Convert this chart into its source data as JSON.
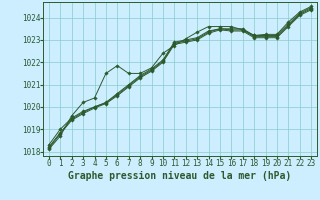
{
  "title": "Graphe pression niveau de la mer (hPa)",
  "background_color": "#cceeff",
  "grid_color": "#88cccc",
  "line_color": "#2d5a2d",
  "xlim": [
    -0.5,
    23.5
  ],
  "ylim": [
    1017.8,
    1024.7
  ],
  "xticks": [
    0,
    1,
    2,
    3,
    4,
    5,
    6,
    7,
    8,
    9,
    10,
    11,
    12,
    13,
    14,
    15,
    16,
    17,
    18,
    19,
    20,
    21,
    22,
    23
  ],
  "yticks": [
    1018,
    1019,
    1020,
    1021,
    1022,
    1023,
    1024
  ],
  "series": [
    [
      1018.3,
      1019.0,
      1019.5,
      1019.8,
      1020.0,
      1020.2,
      1020.6,
      1021.0,
      1021.4,
      1021.7,
      1022.1,
      1022.9,
      1023.0,
      1023.1,
      1023.4,
      1023.5,
      1023.5,
      1023.5,
      1023.2,
      1023.2,
      1023.2,
      1023.7,
      1024.2,
      1024.45
    ],
    [
      1018.15,
      1018.8,
      1019.4,
      1019.7,
      1019.95,
      1020.15,
      1020.5,
      1020.9,
      1021.3,
      1021.6,
      1022.0,
      1022.8,
      1022.9,
      1023.0,
      1023.3,
      1023.45,
      1023.4,
      1023.4,
      1023.1,
      1023.1,
      1023.1,
      1023.6,
      1024.1,
      1024.35
    ],
    [
      1018.2,
      1018.85,
      1019.45,
      1019.75,
      1020.0,
      1020.18,
      1020.55,
      1020.95,
      1021.35,
      1021.65,
      1022.05,
      1022.85,
      1022.95,
      1023.05,
      1023.35,
      1023.5,
      1023.45,
      1023.45,
      1023.15,
      1023.15,
      1023.15,
      1023.65,
      1024.15,
      1024.4
    ],
    [
      1018.1,
      1018.7,
      1019.6,
      1020.2,
      1020.4,
      1021.5,
      1021.85,
      1021.5,
      1021.5,
      1021.75,
      1022.4,
      1022.75,
      1023.05,
      1023.35,
      1023.6,
      1023.6,
      1023.6,
      1023.45,
      1023.2,
      1023.25,
      1023.25,
      1023.8,
      1024.25,
      1024.5
    ]
  ],
  "marker_style": "D",
  "marker_size": 1.8,
  "line_width": 0.7,
  "title_fontsize": 7,
  "tick_fontsize": 5.5
}
